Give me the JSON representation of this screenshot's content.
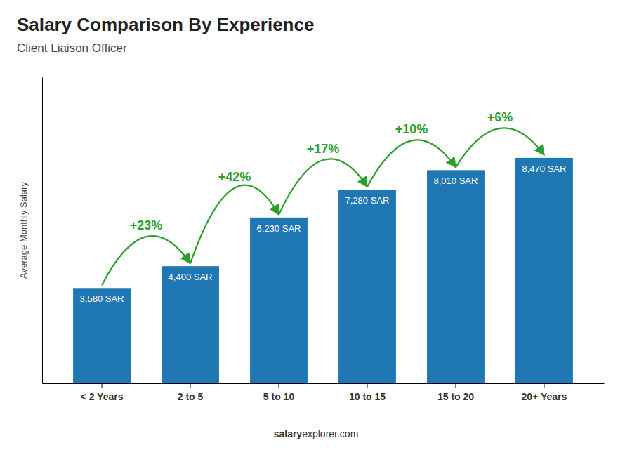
{
  "chart_data": {
    "type": "bar",
    "title": "Salary Comparison By Experience",
    "subtitle": "Client Liaison Officer",
    "y_label": "Average Monthly Salary",
    "categories": [
      "< 2 Years",
      "2 to 5",
      "5 to 10",
      "10 to 15",
      "15 to 20",
      "20+ Years"
    ],
    "values": [
      3580,
      4400,
      6230,
      7280,
      8010,
      8470
    ],
    "value_labels": [
      "3,580 SAR",
      "4,400 SAR",
      "6,230 SAR",
      "7,280 SAR",
      "8,010 SAR",
      "8,470 SAR"
    ],
    "data_labels": true,
    "annotations": [
      "+23%",
      "+42%",
      "+17%",
      "+10%",
      "+6%"
    ],
    "footer": [
      "salary",
      "explorer.com"
    ],
    "ylim": [
      0,
      11500
    ],
    "tick_labels": "x",
    "grid": false
  }
}
